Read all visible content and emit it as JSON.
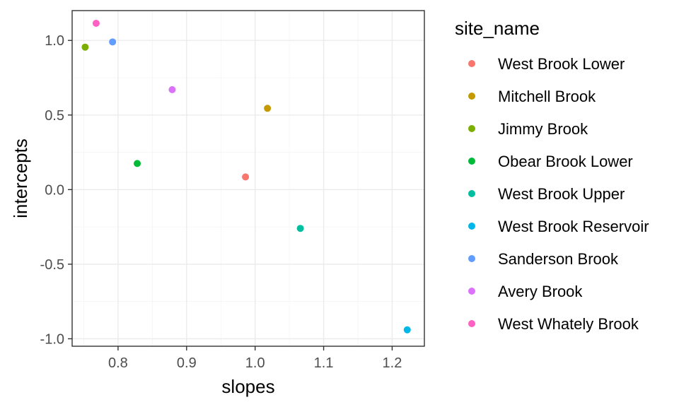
{
  "chart_data": {
    "type": "scatter",
    "xlabel": "slopes",
    "ylabel": "intercepts",
    "xlim": [
      0.733,
      1.247
    ],
    "ylim": [
      -1.05,
      1.2
    ],
    "x_ticks": [
      0.8,
      0.9,
      1.0,
      1.1,
      1.2
    ],
    "x_tick_labels": [
      "0.8",
      "0.9",
      "1.0",
      "1.1",
      "1.2"
    ],
    "y_ticks": [
      1.0,
      0.5,
      0.0,
      -0.5,
      -1.0
    ],
    "y_tick_labels": [
      "1.0",
      "0.5",
      "0.0",
      "-0.5",
      "-1.0"
    ],
    "grid": true,
    "legend": {
      "title": "site_name",
      "position": "right"
    },
    "series": [
      {
        "name": "West Brook Lower",
        "color": "#F8766D",
        "x": [
          0.986
        ],
        "y": [
          0.085
        ]
      },
      {
        "name": "Mitchell Brook",
        "color": "#C49A00",
        "x": [
          1.018
        ],
        "y": [
          0.545
        ]
      },
      {
        "name": "Jimmy Brook",
        "color": "#7CAE00",
        "x": [
          0.752
        ],
        "y": [
          0.955
        ]
      },
      {
        "name": "Obear Brook Lower",
        "color": "#00BA38",
        "x": [
          0.828
        ],
        "y": [
          0.175
        ]
      },
      {
        "name": "West Brook Upper",
        "color": "#00BFA0",
        "x": [
          1.066
        ],
        "y": [
          -0.26
        ]
      },
      {
        "name": "West Brook Reservoir",
        "color": "#00B8E7",
        "x": [
          1.222
        ],
        "y": [
          -0.94
        ]
      },
      {
        "name": "Sanderson Brook",
        "color": "#619CFF",
        "x": [
          0.792
        ],
        "y": [
          0.99
        ]
      },
      {
        "name": "Avery Brook",
        "color": "#DB72FB",
        "x": [
          0.879
        ],
        "y": [
          0.67
        ]
      },
      {
        "name": "West Whately Brook",
        "color": "#FF61C3",
        "x": [
          0.768
        ],
        "y": [
          1.115
        ]
      }
    ]
  }
}
